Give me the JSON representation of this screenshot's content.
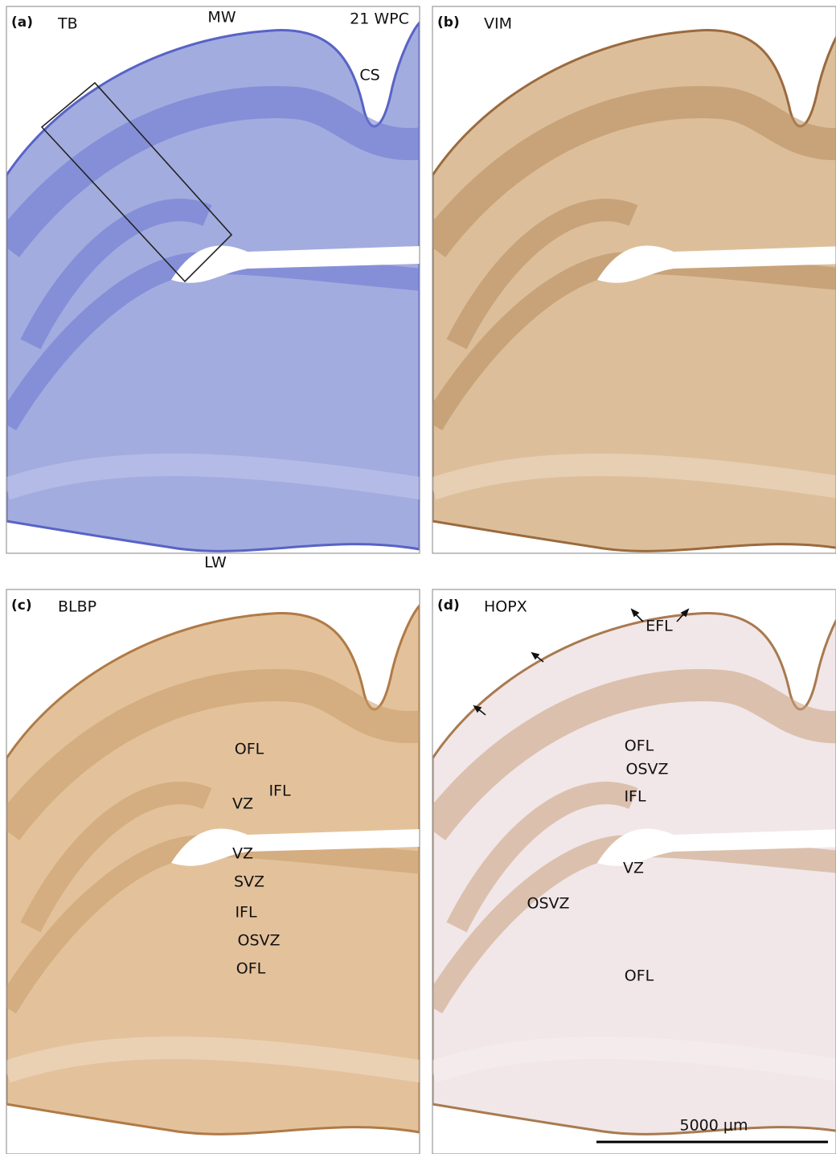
{
  "panels": [
    {
      "label": "(a)",
      "stain": "TB",
      "annotations": [
        "MW",
        "21 WPC",
        "CS",
        "LW"
      ]
    },
    {
      "label": "(b)",
      "stain": "VIM",
      "annotations": []
    },
    {
      "label": "(c)",
      "stain": "BLBP",
      "annotations": [
        "OFL",
        "IFL",
        "VZ",
        "VZ",
        "SVZ",
        "IFL",
        "OSVZ",
        "OFL"
      ]
    },
    {
      "label": "(d)",
      "stain": "HOPX",
      "annotations": [
        "EFL",
        "OFL",
        "OSVZ",
        "IFL",
        "VZ",
        "OSVZ",
        "OFL"
      ]
    }
  ],
  "scale_bar": "5000 μm"
}
